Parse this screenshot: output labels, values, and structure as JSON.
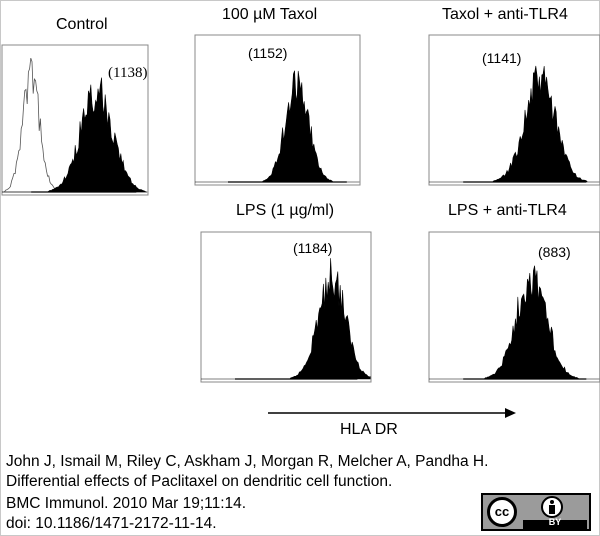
{
  "chart_data": [
    {
      "type": "histogram",
      "title": "Control",
      "mfi_label": "(1138)",
      "xlabel": "HLA DR",
      "series": [
        {
          "style": "outline",
          "peak_position": 0.2,
          "spread": 0.06
        },
        {
          "style": "filled",
          "peak_position": 0.65,
          "spread": 0.11
        }
      ]
    },
    {
      "type": "histogram",
      "title": "100 µM Taxol",
      "mfi_label": "(1152)",
      "xlabel": "HLA DR",
      "series": [
        {
          "style": "filled",
          "peak_position": 0.62,
          "spread": 0.07
        }
      ]
    },
    {
      "type": "histogram",
      "title": "Taxol + anti-TLR4",
      "mfi_label": "(1141)",
      "xlabel": "HLA DR",
      "series": [
        {
          "style": "filled",
          "peak_position": 0.65,
          "spread": 0.09
        }
      ]
    },
    {
      "type": "histogram",
      "title": "LPS (1 µg/ml)",
      "mfi_label": "(1184)",
      "xlabel": "HLA DR",
      "series": [
        {
          "style": "filled",
          "peak_position": 0.77,
          "spread": 0.08
        }
      ]
    },
    {
      "type": "histogram",
      "title": "LPS + anti-TLR4",
      "mfi_label": "(883)",
      "xlabel": "HLA DR",
      "series": [
        {
          "style": "filled",
          "peak_position": 0.6,
          "spread": 0.09
        }
      ]
    }
  ],
  "axis": {
    "label": "HLA DR"
  },
  "citation": {
    "line1": "John J, Ismail M, Riley C, Askham J, Morgan R, Melcher A, Pandha H.",
    "line2": "Differential effects of Paclitaxel on dendritic cell function.",
    "line3": "BMC Immunol. 2010 Mar 19;11:14.",
    "line4": "doi: 10.1186/1471-2172-11-14."
  },
  "license": {
    "cc": "cc",
    "by": "BY"
  }
}
